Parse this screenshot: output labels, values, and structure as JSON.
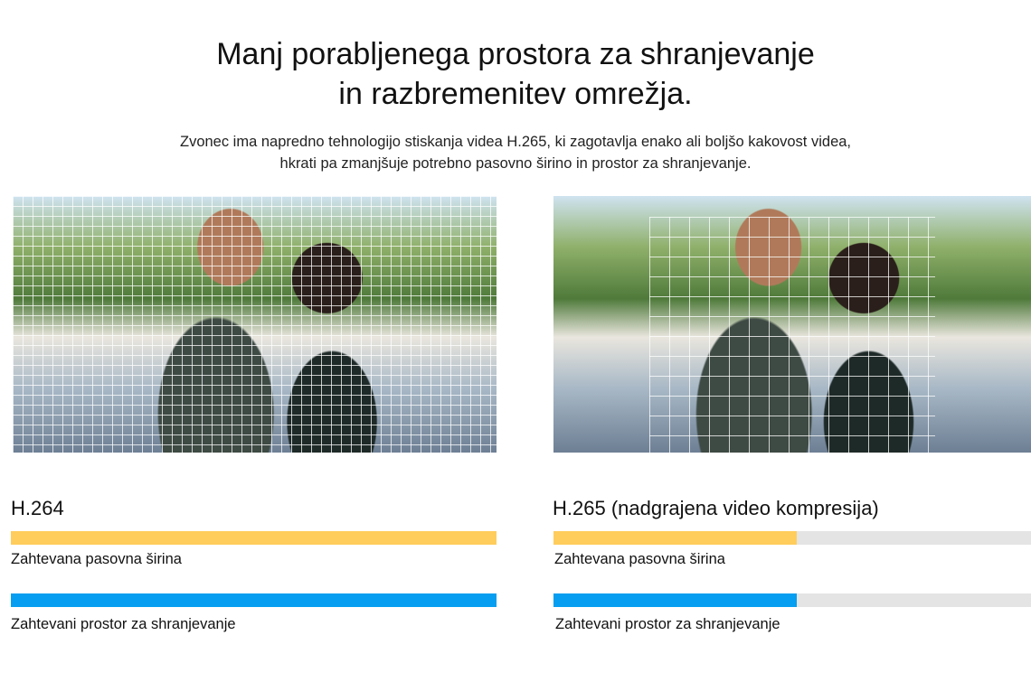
{
  "header": {
    "title_line1": "Manj porabljenega prostora za shranjevanje",
    "title_line2": "in razbremenitev omrežja.",
    "subtitle_line1": "Zvonec ima napredno tehnologijo stiskanja videa H.265, ki zagotavlja enako ali boljšo kakovost videa,",
    "subtitle_line2": "hkrati pa zmanjšuje potrebno pasovno širino in prostor za shranjevanje."
  },
  "colors": {
    "bandwidth": "#ffcd5c",
    "storage": "#069ef0",
    "track": "#e4e4e4"
  },
  "left": {
    "codec": "H.264",
    "bandwidth_label": "Zahtevana pasovna širina",
    "bandwidth_percent": 100,
    "storage_label": "Zahtevani prostor za shranjevanje",
    "storage_percent": 100
  },
  "right": {
    "codec": "H.265 (nadgrajena video kompresija)",
    "bandwidth_label": "Zahtevana pasovna širina",
    "bandwidth_percent": 51,
    "storage_label": "Zahtevani prostor za shranjevanje",
    "storage_percent": 51
  }
}
